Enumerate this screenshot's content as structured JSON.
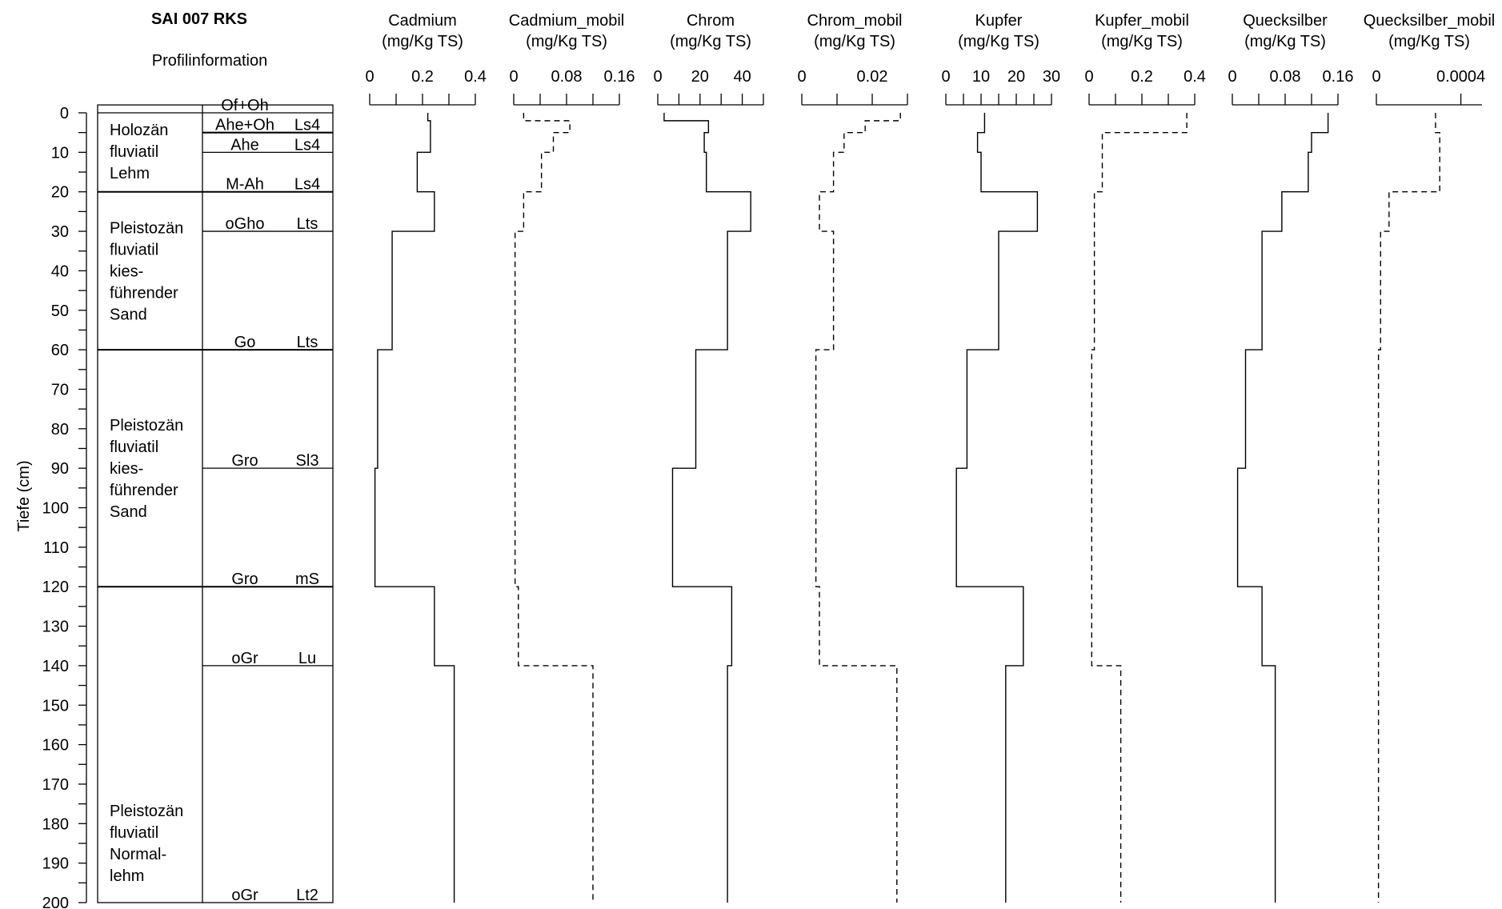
{
  "chart_data": {
    "type": "depth-profile",
    "profile": {
      "title": "SAI 007 RKS",
      "subtitle": "Profilinformation",
      "ylabel": "Tiefe (cm)",
      "ylim": [
        0,
        200
      ],
      "yticks": [
        0,
        10,
        20,
        30,
        40,
        50,
        60,
        70,
        80,
        90,
        100,
        110,
        120,
        130,
        140,
        150,
        160,
        170,
        180,
        190,
        200
      ],
      "strata": [
        {
          "top": 0,
          "bottom": 20,
          "label": [
            "Holozän",
            "fluviatil",
            "Lehm"
          ]
        },
        {
          "top": 20,
          "bottom": 60,
          "label": [
            "Pleistozän",
            "fluviatil",
            "kies-",
            "führender",
            "Sand"
          ]
        },
        {
          "top": 60,
          "bottom": 120,
          "label": [
            "Pleistozän",
            "fluviatil",
            "kies-",
            "führender",
            "Sand"
          ]
        },
        {
          "top": 120,
          "bottom": 200,
          "label": [
            "Pleistozän",
            "fluviatil",
            "Normal-",
            "lehm"
          ]
        }
      ],
      "horizons": [
        {
          "top": -2,
          "bottom": 0,
          "name": "Of+Oh",
          "soil": ""
        },
        {
          "top": 0,
          "bottom": 5,
          "name": "Ahe+Oh",
          "soil": "Ls4"
        },
        {
          "top": 5,
          "bottom": 10,
          "name": "Ahe",
          "soil": "Ls4"
        },
        {
          "top": 10,
          "bottom": 20,
          "name": "M-Ah",
          "soil": "Ls4"
        },
        {
          "top": 20,
          "bottom": 30,
          "name": "oGho",
          "soil": "Lts"
        },
        {
          "top": 30,
          "bottom": 60,
          "name": "Go",
          "soil": "Lts"
        },
        {
          "top": 60,
          "bottom": 90,
          "name": "Gro",
          "soil": "Sl3"
        },
        {
          "top": 90,
          "bottom": 120,
          "name": "Gro",
          "soil": "mS"
        },
        {
          "top": 120,
          "bottom": 140,
          "name": "oGr",
          "soil": "Lu"
        },
        {
          "top": 140,
          "bottom": 200,
          "name": "oGr",
          "soil": "Lt2"
        }
      ]
    },
    "panels": [
      {
        "title": "Cadmium",
        "unit": "(mg/Kg TS)",
        "xlim": [
          0,
          0.4
        ],
        "tick_labels": [
          "0",
          "0.2",
          "0.4"
        ],
        "ticks": [
          0,
          0.1,
          0.2,
          0.3,
          0.4
        ],
        "style": "solid",
        "steps": [
          {
            "top": 0,
            "bottom": 2,
            "value": 0.22
          },
          {
            "top": 2,
            "bottom": 10,
            "value": 0.23
          },
          {
            "top": 10,
            "bottom": 20,
            "value": 0.18
          },
          {
            "top": 20,
            "bottom": 30,
            "value": 0.245
          },
          {
            "top": 30,
            "bottom": 60,
            "value": 0.085
          },
          {
            "top": 60,
            "bottom": 90,
            "value": 0.03
          },
          {
            "top": 90,
            "bottom": 120,
            "value": 0.02
          },
          {
            "top": 120,
            "bottom": 140,
            "value": 0.245
          },
          {
            "top": 140,
            "bottom": 200,
            "value": 0.32
          }
        ]
      },
      {
        "title": "Cadmium_mobil",
        "unit": "(mg/Kg TS)",
        "xlim": [
          0,
          0.16
        ],
        "tick_labels": [
          "0",
          "0.08",
          "0.16"
        ],
        "ticks": [
          0,
          0.04,
          0.08,
          0.12,
          0.16
        ],
        "style": "dashed",
        "steps": [
          {
            "top": 0,
            "bottom": 2,
            "value": 0.015
          },
          {
            "top": 2,
            "bottom": 5,
            "value": 0.085
          },
          {
            "top": 5,
            "bottom": 10,
            "value": 0.06
          },
          {
            "top": 10,
            "bottom": 20,
            "value": 0.042
          },
          {
            "top": 20,
            "bottom": 30,
            "value": 0.015
          },
          {
            "top": 30,
            "bottom": 120,
            "value": 0.002
          },
          {
            "top": 120,
            "bottom": 140,
            "value": 0.007
          },
          {
            "top": 140,
            "bottom": 200,
            "value": 0.12
          }
        ]
      },
      {
        "title": "Chrom",
        "unit": "(mg/Kg TS)",
        "xlim": [
          0,
          50
        ],
        "tick_labels": [
          "0",
          "20",
          "40"
        ],
        "ticks": [
          0,
          10,
          20,
          30,
          40,
          50
        ],
        "style": "solid",
        "steps": [
          {
            "top": 0,
            "bottom": 2,
            "value": 3
          },
          {
            "top": 2,
            "bottom": 5,
            "value": 24
          },
          {
            "top": 5,
            "bottom": 10,
            "value": 22
          },
          {
            "top": 10,
            "bottom": 20,
            "value": 23
          },
          {
            "top": 20,
            "bottom": 30,
            "value": 44
          },
          {
            "top": 30,
            "bottom": 60,
            "value": 33
          },
          {
            "top": 60,
            "bottom": 90,
            "value": 18
          },
          {
            "top": 90,
            "bottom": 120,
            "value": 7
          },
          {
            "top": 120,
            "bottom": 140,
            "value": 35
          },
          {
            "top": 140,
            "bottom": 200,
            "value": 33
          }
        ]
      },
      {
        "title": "Chrom_mobil",
        "unit": "(mg/Kg TS)",
        "xlim": [
          0,
          0.03
        ],
        "tick_labels": [
          "0",
          "0.02"
        ],
        "ticks": [
          0,
          0.01,
          0.02,
          0.03
        ],
        "style": "dashed",
        "steps": [
          {
            "top": 0,
            "bottom": 2,
            "value": 0.028
          },
          {
            "top": 2,
            "bottom": 5,
            "value": 0.018
          },
          {
            "top": 5,
            "bottom": 10,
            "value": 0.012
          },
          {
            "top": 10,
            "bottom": 20,
            "value": 0.009
          },
          {
            "top": 20,
            "bottom": 30,
            "value": 0.005
          },
          {
            "top": 30,
            "bottom": 60,
            "value": 0.009
          },
          {
            "top": 60,
            "bottom": 120,
            "value": 0.004
          },
          {
            "top": 120,
            "bottom": 140,
            "value": 0.005
          },
          {
            "top": 140,
            "bottom": 200,
            "value": 0.027
          }
        ]
      },
      {
        "title": "Kupfer",
        "unit": "(mg/Kg TS)",
        "xlim": [
          0,
          30
        ],
        "tick_labels": [
          "0",
          "10",
          "20",
          "30"
        ],
        "ticks": [
          0,
          5,
          10,
          15,
          20,
          25,
          30
        ],
        "style": "solid",
        "steps": [
          {
            "top": 0,
            "bottom": 5,
            "value": 11
          },
          {
            "top": 5,
            "bottom": 10,
            "value": 9
          },
          {
            "top": 10,
            "bottom": 20,
            "value": 10
          },
          {
            "top": 20,
            "bottom": 30,
            "value": 26
          },
          {
            "top": 30,
            "bottom": 60,
            "value": 15
          },
          {
            "top": 60,
            "bottom": 90,
            "value": 6
          },
          {
            "top": 90,
            "bottom": 120,
            "value": 3
          },
          {
            "top": 120,
            "bottom": 140,
            "value": 22
          },
          {
            "top": 140,
            "bottom": 200,
            "value": 17
          }
        ]
      },
      {
        "title": "Kupfer_mobil",
        "unit": "(mg/Kg TS)",
        "xlim": [
          0,
          0.4
        ],
        "tick_labels": [
          "0",
          "0.2",
          "0.4"
        ],
        "ticks": [
          0,
          0.1,
          0.2,
          0.3,
          0.4
        ],
        "style": "dashed",
        "steps": [
          {
            "top": 0,
            "bottom": 5,
            "value": 0.37
          },
          {
            "top": 5,
            "bottom": 20,
            "value": 0.05
          },
          {
            "top": 20,
            "bottom": 60,
            "value": 0.02
          },
          {
            "top": 60,
            "bottom": 140,
            "value": 0.01
          },
          {
            "top": 140,
            "bottom": 200,
            "value": 0.12
          }
        ]
      },
      {
        "title": "Quecksilber",
        "unit": "(mg/Kg TS)",
        "xlim": [
          0,
          0.16
        ],
        "tick_labels": [
          "0",
          "0.08",
          "0.16"
        ],
        "ticks": [
          0,
          0.04,
          0.08,
          0.12,
          0.16
        ],
        "style": "solid",
        "steps": [
          {
            "top": 0,
            "bottom": 5,
            "value": 0.145
          },
          {
            "top": 5,
            "bottom": 10,
            "value": 0.12
          },
          {
            "top": 10,
            "bottom": 20,
            "value": 0.115
          },
          {
            "top": 20,
            "bottom": 30,
            "value": 0.075
          },
          {
            "top": 30,
            "bottom": 60,
            "value": 0.045
          },
          {
            "top": 60,
            "bottom": 90,
            "value": 0.02
          },
          {
            "top": 90,
            "bottom": 120,
            "value": 0.008
          },
          {
            "top": 120,
            "bottom": 140,
            "value": 0.045
          },
          {
            "top": 140,
            "bottom": 200,
            "value": 0.065
          }
        ]
      },
      {
        "title": "Quecksilber_mobil",
        "unit": "(mg/Kg TS)",
        "xlim": [
          0,
          0.0005
        ],
        "tick_labels": [
          "0",
          "0.0004"
        ],
        "ticks": [
          0,
          0.0004
        ],
        "style": "dashed",
        "steps": [
          {
            "top": 0,
            "bottom": 5,
            "value": 0.00028
          },
          {
            "top": 5,
            "bottom": 20,
            "value": 0.0003
          },
          {
            "top": 20,
            "bottom": 30,
            "value": 6e-05
          },
          {
            "top": 30,
            "bottom": 60,
            "value": 2e-05
          },
          {
            "top": 60,
            "bottom": 200,
            "value": 1e-05
          }
        ]
      }
    ]
  }
}
